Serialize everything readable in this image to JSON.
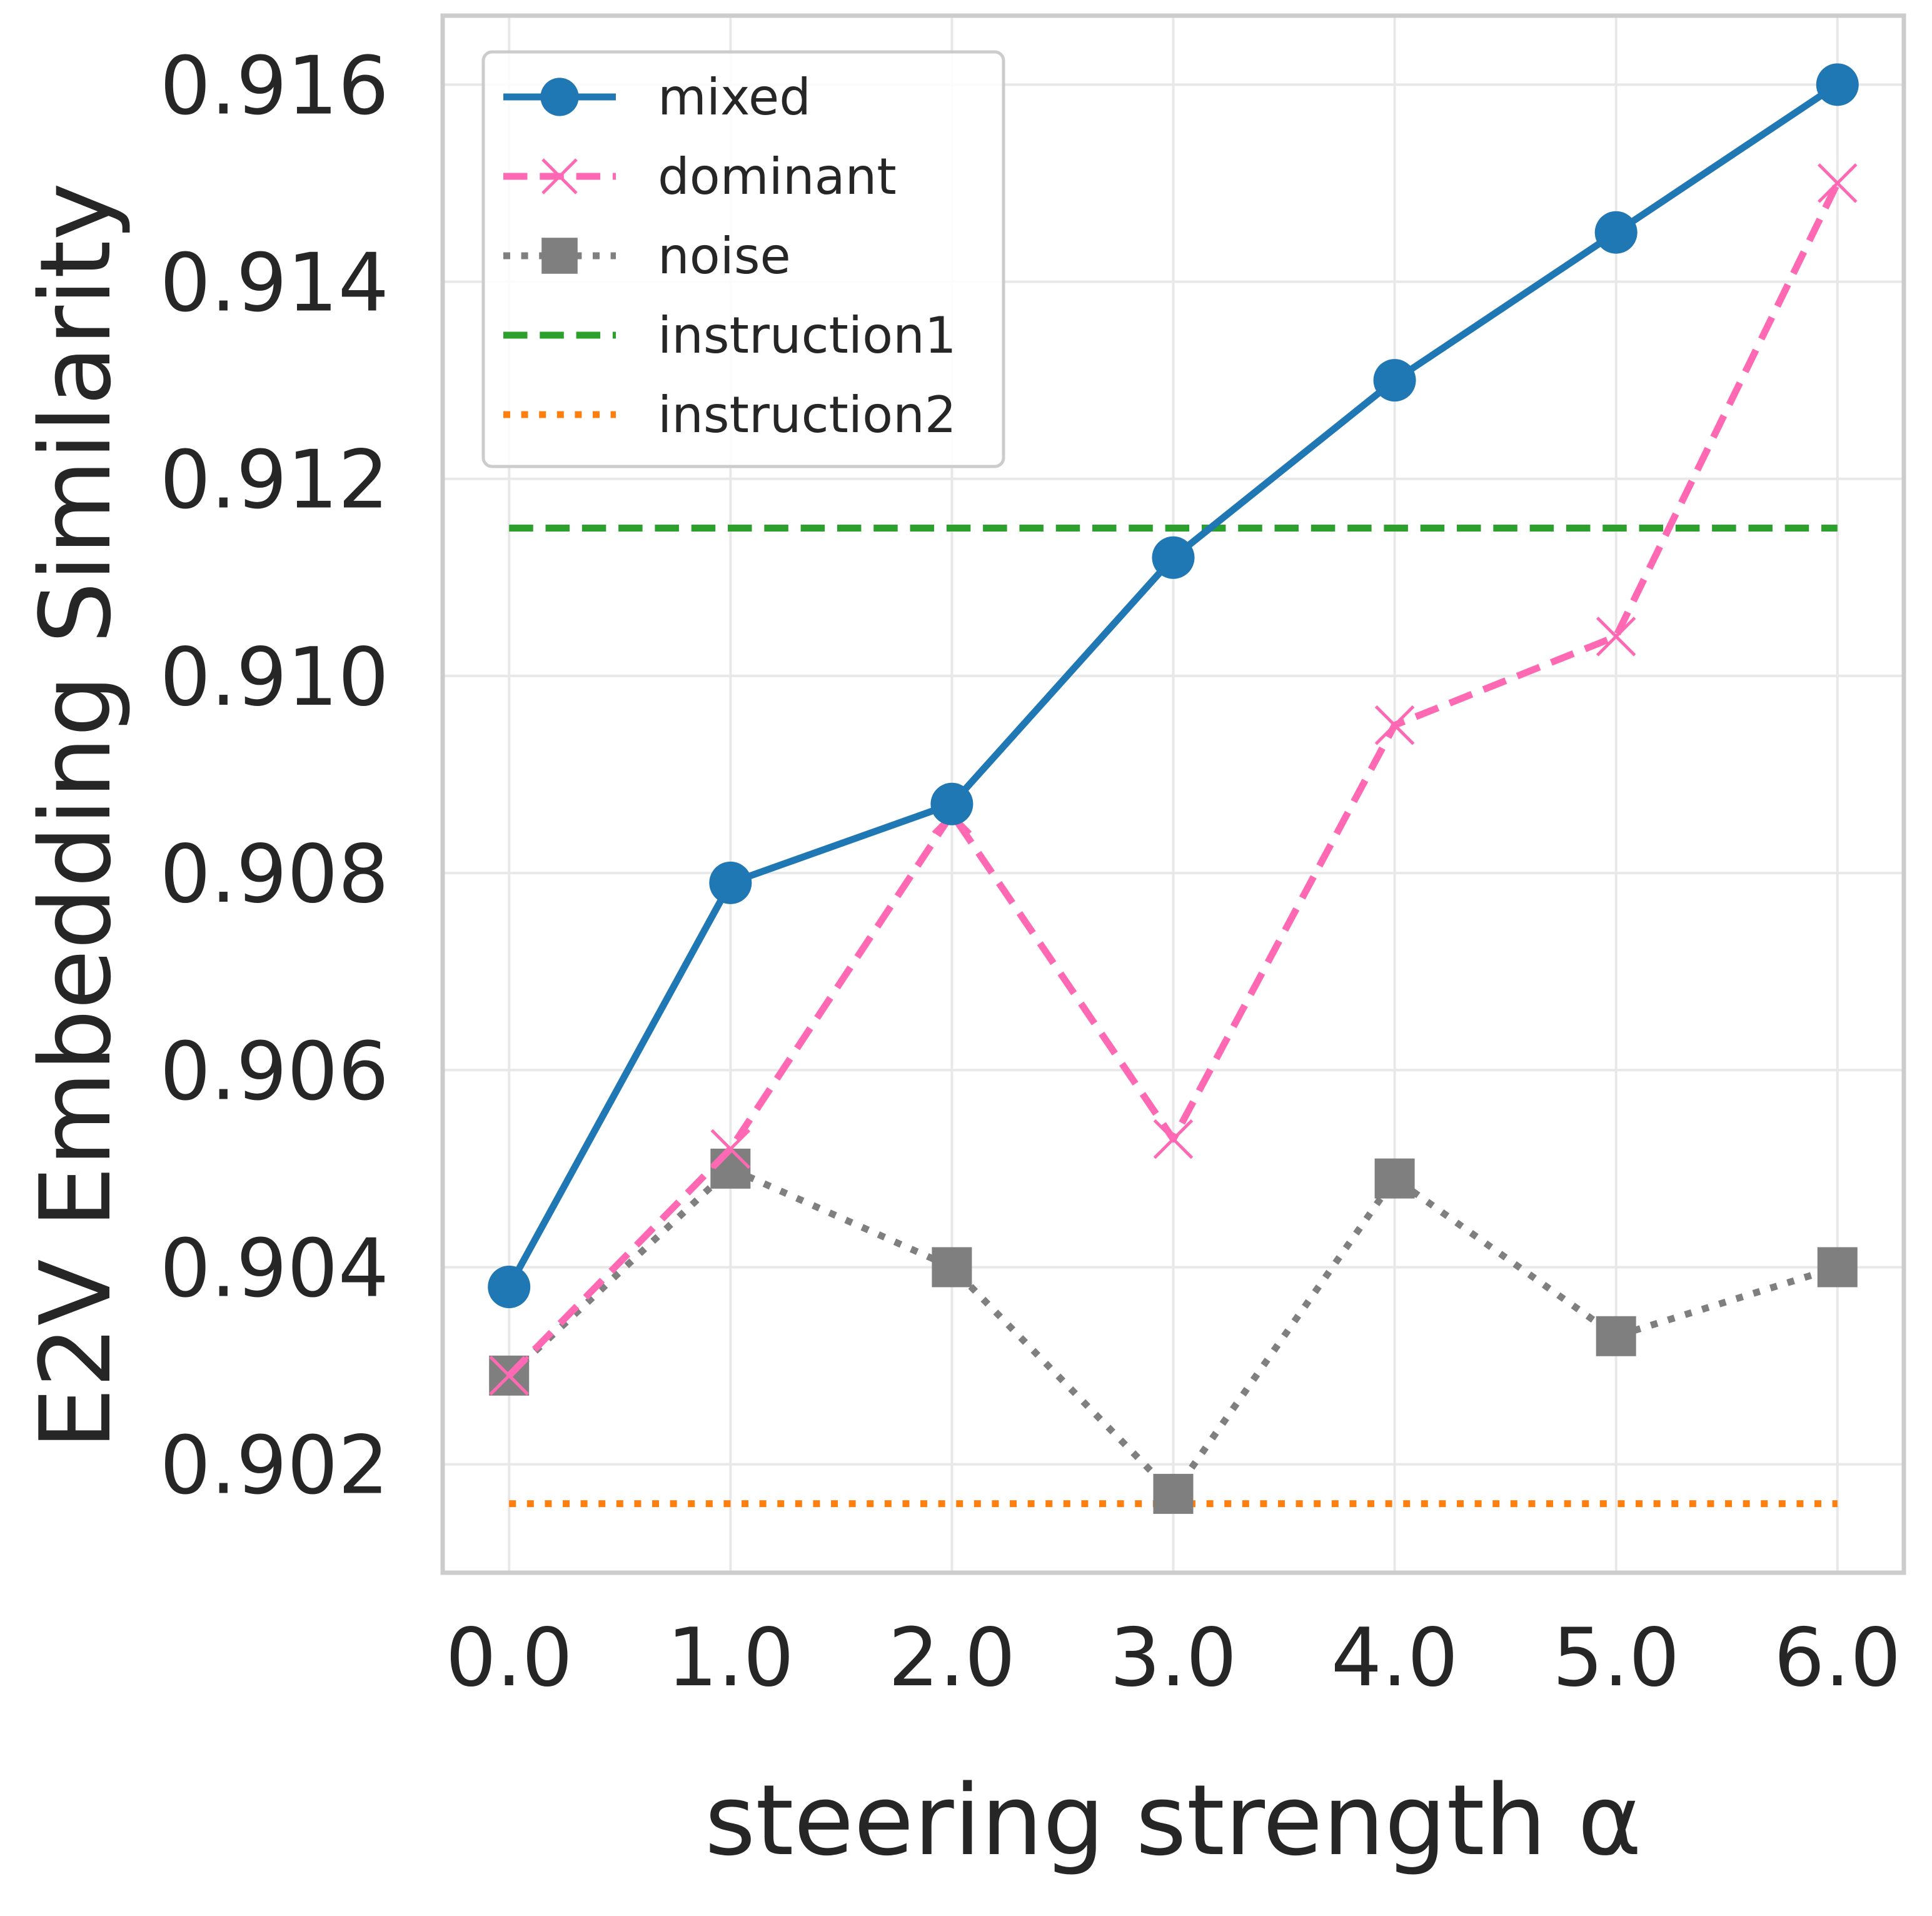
{
  "chart_data": {
    "type": "line",
    "title": "",
    "xlabel": "steering strength α",
    "ylabel": "E2V Embedding Similarity",
    "x": [
      0.0,
      1.0,
      2.0,
      3.0,
      4.0,
      5.0,
      6.0
    ],
    "x_tick_labels": [
      "0.0",
      "1.0",
      "2.0",
      "3.0",
      "4.0",
      "5.0",
      "6.0"
    ],
    "y_ticks": [
      0.902,
      0.904,
      0.906,
      0.908,
      0.91,
      0.912,
      0.914,
      0.916
    ],
    "y_tick_labels": [
      "0.902",
      "0.904",
      "0.906",
      "0.908",
      "0.910",
      "0.912",
      "0.914",
      "0.916"
    ],
    "xlim": [
      -0.3,
      6.3
    ],
    "ylim": [
      0.9009,
      0.9167
    ],
    "grid": true,
    "legend_position": "top-left",
    "series": [
      {
        "name": "mixed",
        "values": [
          0.9038,
          0.9079,
          0.9087,
          0.9112,
          0.913,
          0.9145,
          0.916
        ],
        "color": "#1f77b4",
        "line_style": "solid",
        "marker": "circle"
      },
      {
        "name": "dominant",
        "values": [
          0.9029,
          0.9052,
          0.9086,
          0.9053,
          0.9095,
          0.9104,
          0.915
        ],
        "color": "#ff69b4",
        "line_style": "dashed",
        "marker": "x"
      },
      {
        "name": "noise",
        "values": [
          0.9029,
          0.905,
          0.904,
          0.9017,
          0.9049,
          0.9033,
          0.904
        ],
        "color": "#7f7f7f",
        "line_style": "dotted",
        "marker": "square"
      },
      {
        "name": "instruction1",
        "values": [
          0.9115,
          0.9115,
          0.9115,
          0.9115,
          0.9115,
          0.9115,
          0.9115
        ],
        "color": "#2ca02c",
        "line_style": "dashed",
        "marker": "none"
      },
      {
        "name": "instruction2",
        "values": [
          0.9016,
          0.9016,
          0.9016,
          0.9016,
          0.9016,
          0.9016,
          0.9016
        ],
        "color": "#ff7f0e",
        "line_style": "dotted",
        "marker": "none"
      }
    ]
  }
}
